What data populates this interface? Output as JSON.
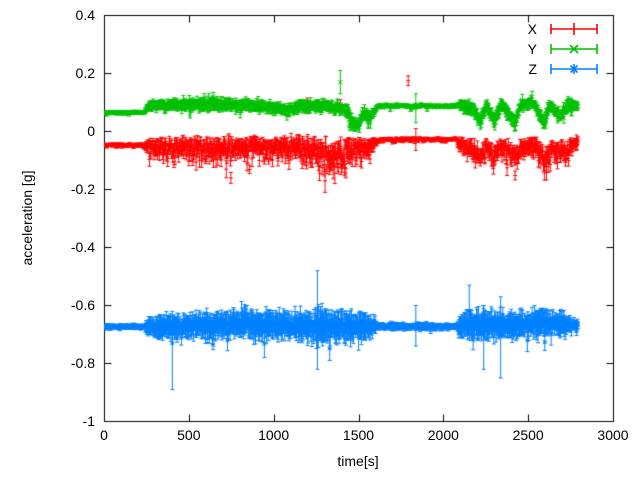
{
  "chart_data": {
    "type": "scatter",
    "subtype": "errorbars",
    "title": "",
    "xlabel": "time[s]",
    "ylabel": "acceleration [g]",
    "xlim": [
      0,
      3000
    ],
    "ylim": [
      -1,
      0.4
    ],
    "xticks": [
      0,
      500,
      1000,
      1500,
      2000,
      2500,
      3000
    ],
    "yticks": [
      0.4,
      0.2,
      0,
      -0.2,
      -0.4,
      -0.6,
      -0.8,
      -1
    ],
    "grid": false,
    "plot_border": "full-box-with-mirrored-ticks",
    "legend_position": "top-right-inside",
    "background_color": "#ffffff",
    "axis_color": "#000000",
    "data_time_range": [
      0,
      2790
    ],
    "series": [
      {
        "name": "X",
        "color": "#ff0000",
        "marker": "errorbar-tick",
        "seed": 11,
        "skew_down": true,
        "envelope_keyframes": [
          [
            0,
            -0.045,
            0.004,
            0.006
          ],
          [
            235,
            -0.045,
            0.004,
            0.006
          ],
          [
            255,
            -0.04,
            0.02,
            0.02
          ],
          [
            350,
            -0.045,
            0.028,
            0.025
          ],
          [
            500,
            -0.04,
            0.03,
            0.025
          ],
          [
            700,
            -0.045,
            0.035,
            0.028
          ],
          [
            900,
            -0.04,
            0.032,
            0.025
          ],
          [
            1050,
            -0.045,
            0.03,
            0.025
          ],
          [
            1150,
            -0.04,
            0.035,
            0.028
          ],
          [
            1250,
            -0.05,
            0.04,
            0.03
          ],
          [
            1330,
            -0.06,
            0.045,
            0.032
          ],
          [
            1420,
            -0.055,
            0.045,
            0.03
          ],
          [
            1500,
            -0.04,
            0.03,
            0.025
          ],
          [
            1560,
            -0.05,
            0.035,
            0.028
          ],
          [
            1595,
            -0.03,
            0.015,
            0.01
          ],
          [
            1615,
            -0.024,
            0.006,
            0.005
          ],
          [
            2075,
            -0.024,
            0.006,
            0.005
          ],
          [
            2100,
            -0.035,
            0.02,
            0.02
          ],
          [
            2180,
            -0.05,
            0.03,
            0.025
          ],
          [
            2215,
            -0.075,
            0.03,
            0.025
          ],
          [
            2250,
            -0.04,
            0.025,
            0.022
          ],
          [
            2300,
            -0.07,
            0.03,
            0.025
          ],
          [
            2340,
            -0.04,
            0.025,
            0.022
          ],
          [
            2420,
            -0.075,
            0.03,
            0.025
          ],
          [
            2460,
            -0.045,
            0.025,
            0.022
          ],
          [
            2540,
            -0.04,
            0.028,
            0.022
          ],
          [
            2600,
            -0.08,
            0.032,
            0.025
          ],
          [
            2640,
            -0.05,
            0.028,
            0.022
          ],
          [
            2700,
            -0.06,
            0.03,
            0.022
          ],
          [
            2760,
            -0.035,
            0.02,
            0.018
          ],
          [
            2790,
            -0.03,
            0.015,
            0.015
          ]
        ],
        "outliers": [
          {
            "t": 1195,
            "v": 0.1,
            "lo": 0.085,
            "hi": 0.115
          },
          {
            "t": 1300,
            "v": -0.17,
            "lo": -0.21,
            "hi": -0.13
          },
          {
            "t": 1390,
            "v": 0.095,
            "lo": 0.08,
            "hi": 0.11
          },
          {
            "t": 1790,
            "v": 0.175,
            "lo": 0.158,
            "hi": 0.192
          },
          {
            "t": 1835,
            "v": -0.025,
            "lo": -0.065,
            "hi": 0.01
          }
        ]
      },
      {
        "name": "Y",
        "color": "#00c000",
        "marker": "cross",
        "seed": 22,
        "skew_down": false,
        "envelope_keyframes": [
          [
            0,
            0.065,
            0.004,
            0.006
          ],
          [
            235,
            0.065,
            0.004,
            0.006
          ],
          [
            255,
            0.088,
            0.012,
            0.015
          ],
          [
            420,
            0.092,
            0.014,
            0.018
          ],
          [
            600,
            0.095,
            0.016,
            0.02
          ],
          [
            800,
            0.09,
            0.016,
            0.018
          ],
          [
            1000,
            0.085,
            0.015,
            0.018
          ],
          [
            1080,
            0.07,
            0.018,
            0.02
          ],
          [
            1150,
            0.09,
            0.015,
            0.018
          ],
          [
            1230,
            0.085,
            0.018,
            0.02
          ],
          [
            1300,
            0.09,
            0.015,
            0.018
          ],
          [
            1360,
            0.08,
            0.015,
            0.018
          ],
          [
            1430,
            0.075,
            0.02,
            0.02
          ],
          [
            1465,
            0.03,
            0.022,
            0.02
          ],
          [
            1495,
            0.02,
            0.015,
            0.018
          ],
          [
            1520,
            0.06,
            0.015,
            0.015
          ],
          [
            1560,
            0.05,
            0.02,
            0.02
          ],
          [
            1595,
            0.07,
            0.01,
            0.008
          ],
          [
            1615,
            0.088,
            0.008,
            0.005
          ],
          [
            2075,
            0.088,
            0.008,
            0.005
          ],
          [
            2100,
            0.09,
            0.015,
            0.018
          ],
          [
            2180,
            0.075,
            0.02,
            0.02
          ],
          [
            2215,
            0.035,
            0.02,
            0.02
          ],
          [
            2250,
            0.09,
            0.015,
            0.018
          ],
          [
            2300,
            0.04,
            0.02,
            0.02
          ],
          [
            2340,
            0.095,
            0.015,
            0.018
          ],
          [
            2420,
            0.03,
            0.02,
            0.02
          ],
          [
            2450,
            0.09,
            0.015,
            0.018
          ],
          [
            2530,
            0.1,
            0.015,
            0.018
          ],
          [
            2590,
            0.03,
            0.02,
            0.02
          ],
          [
            2620,
            0.09,
            0.015,
            0.018
          ],
          [
            2690,
            0.05,
            0.02,
            0.02
          ],
          [
            2730,
            0.095,
            0.015,
            0.018
          ],
          [
            2790,
            0.085,
            0.012,
            0.015
          ]
        ],
        "outliers": [
          {
            "t": 640,
            "v": 0.12,
            "lo": 0.1,
            "hi": 0.135
          },
          {
            "t": 1390,
            "v": 0.17,
            "lo": 0.13,
            "hi": 0.21
          },
          {
            "t": 1835,
            "v": 0.08,
            "lo": 0.03,
            "hi": 0.13
          }
        ]
      },
      {
        "name": "Z",
        "color": "#0080ff",
        "marker": "asterisk",
        "seed": 33,
        "skew_down": false,
        "envelope_keyframes": [
          [
            0,
            -0.673,
            0.005,
            0.008
          ],
          [
            235,
            -0.673,
            0.005,
            0.008
          ],
          [
            260,
            -0.672,
            0.022,
            0.03
          ],
          [
            400,
            -0.672,
            0.028,
            0.035
          ],
          [
            550,
            -0.67,
            0.03,
            0.04
          ],
          [
            700,
            -0.668,
            0.032,
            0.04
          ],
          [
            820,
            -0.66,
            0.035,
            0.045
          ],
          [
            950,
            -0.665,
            0.035,
            0.045
          ],
          [
            1100,
            -0.67,
            0.03,
            0.04
          ],
          [
            1200,
            -0.675,
            0.038,
            0.05
          ],
          [
            1300,
            -0.67,
            0.04,
            0.05
          ],
          [
            1400,
            -0.675,
            0.038,
            0.05
          ],
          [
            1500,
            -0.67,
            0.032,
            0.045
          ],
          [
            1590,
            -0.675,
            0.02,
            0.03
          ],
          [
            1615,
            -0.672,
            0.006,
            0.008
          ],
          [
            1700,
            -0.672,
            0.011,
            0.012
          ],
          [
            1780,
            -0.672,
            0.008,
            0.01
          ],
          [
            1900,
            -0.672,
            0.01,
            0.012
          ],
          [
            1990,
            -0.672,
            0.007,
            0.008
          ],
          [
            2075,
            -0.672,
            0.006,
            0.008
          ],
          [
            2100,
            -0.67,
            0.025,
            0.035
          ],
          [
            2200,
            -0.665,
            0.032,
            0.045
          ],
          [
            2300,
            -0.668,
            0.035,
            0.045
          ],
          [
            2400,
            -0.67,
            0.03,
            0.04
          ],
          [
            2500,
            -0.665,
            0.028,
            0.04
          ],
          [
            2600,
            -0.66,
            0.03,
            0.04
          ],
          [
            2700,
            -0.668,
            0.028,
            0.035
          ],
          [
            2760,
            -0.665,
            0.015,
            0.02
          ],
          [
            2790,
            -0.665,
            0.01,
            0.015
          ]
        ],
        "outliers": [
          {
            "t": 400,
            "v": -0.73,
            "lo": -0.89,
            "hi": -0.62
          },
          {
            "t": 1255,
            "v": -0.66,
            "lo": -0.82,
            "hi": -0.48
          },
          {
            "t": 1835,
            "v": -0.672,
            "lo": -0.74,
            "hi": -0.6
          },
          {
            "t": 2150,
            "v": -0.62,
            "lo": -0.72,
            "hi": -0.53
          },
          {
            "t": 2235,
            "v": -0.7,
            "lo": -0.82,
            "hi": -0.6
          },
          {
            "t": 2335,
            "v": -0.7,
            "lo": -0.85,
            "hi": -0.57
          }
        ]
      }
    ]
  }
}
